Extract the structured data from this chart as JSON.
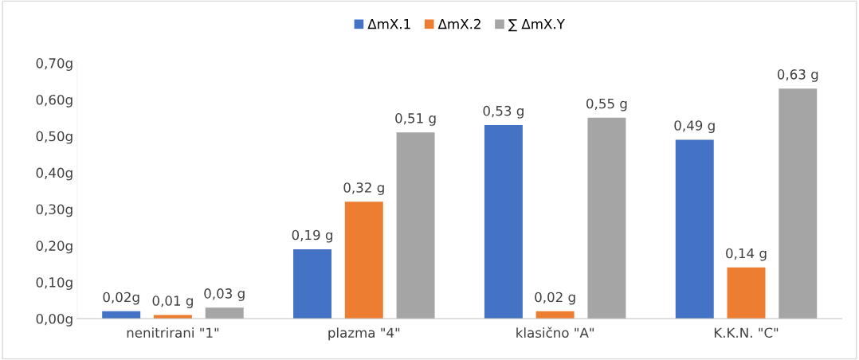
{
  "chart_data": {
    "type": "bar",
    "categories": [
      "nenitrirani \"1\"",
      "plazma \"4\"",
      "klasično \"A\"",
      "K.K.N. \"C\""
    ],
    "series": [
      {
        "name": "ΔmX.1",
        "color": "#4472c4",
        "values": [
          0.02,
          0.19,
          0.53,
          0.49
        ],
        "value_labels": [
          "0,02g",
          "0,19 g",
          "0,53 g",
          "0,49 g"
        ]
      },
      {
        "name": "ΔmX.2",
        "color": "#ed7d31",
        "values": [
          0.01,
          0.32,
          0.02,
          0.14
        ],
        "value_labels": [
          "0,01 g",
          "0,32 g",
          "0,02 g",
          "0,14 g"
        ]
      },
      {
        "name": "∑ ΔmX.Y",
        "color": "#a5a5a5",
        "values": [
          0.03,
          0.51,
          0.55,
          0.63
        ],
        "value_labels": [
          "0,03 g",
          "0,51 g",
          "0,55 g",
          "0,63 g"
        ]
      }
    ],
    "ylim": [
      0,
      0.7
    ],
    "yticks": [
      {
        "value": 0,
        "label": "0,00g"
      },
      {
        "value": 0.1,
        "label": "0,10g"
      },
      {
        "value": 0.2,
        "label": "0,20g"
      },
      {
        "value": 0.3,
        "label": "0,30g"
      },
      {
        "value": 0.4,
        "label": "0,40g"
      },
      {
        "value": 0.5,
        "label": "0,50g"
      },
      {
        "value": 0.6,
        "label": "0,60g"
      },
      {
        "value": 0.7,
        "label": "0,70g"
      }
    ],
    "grid": false,
    "legend": "top"
  }
}
